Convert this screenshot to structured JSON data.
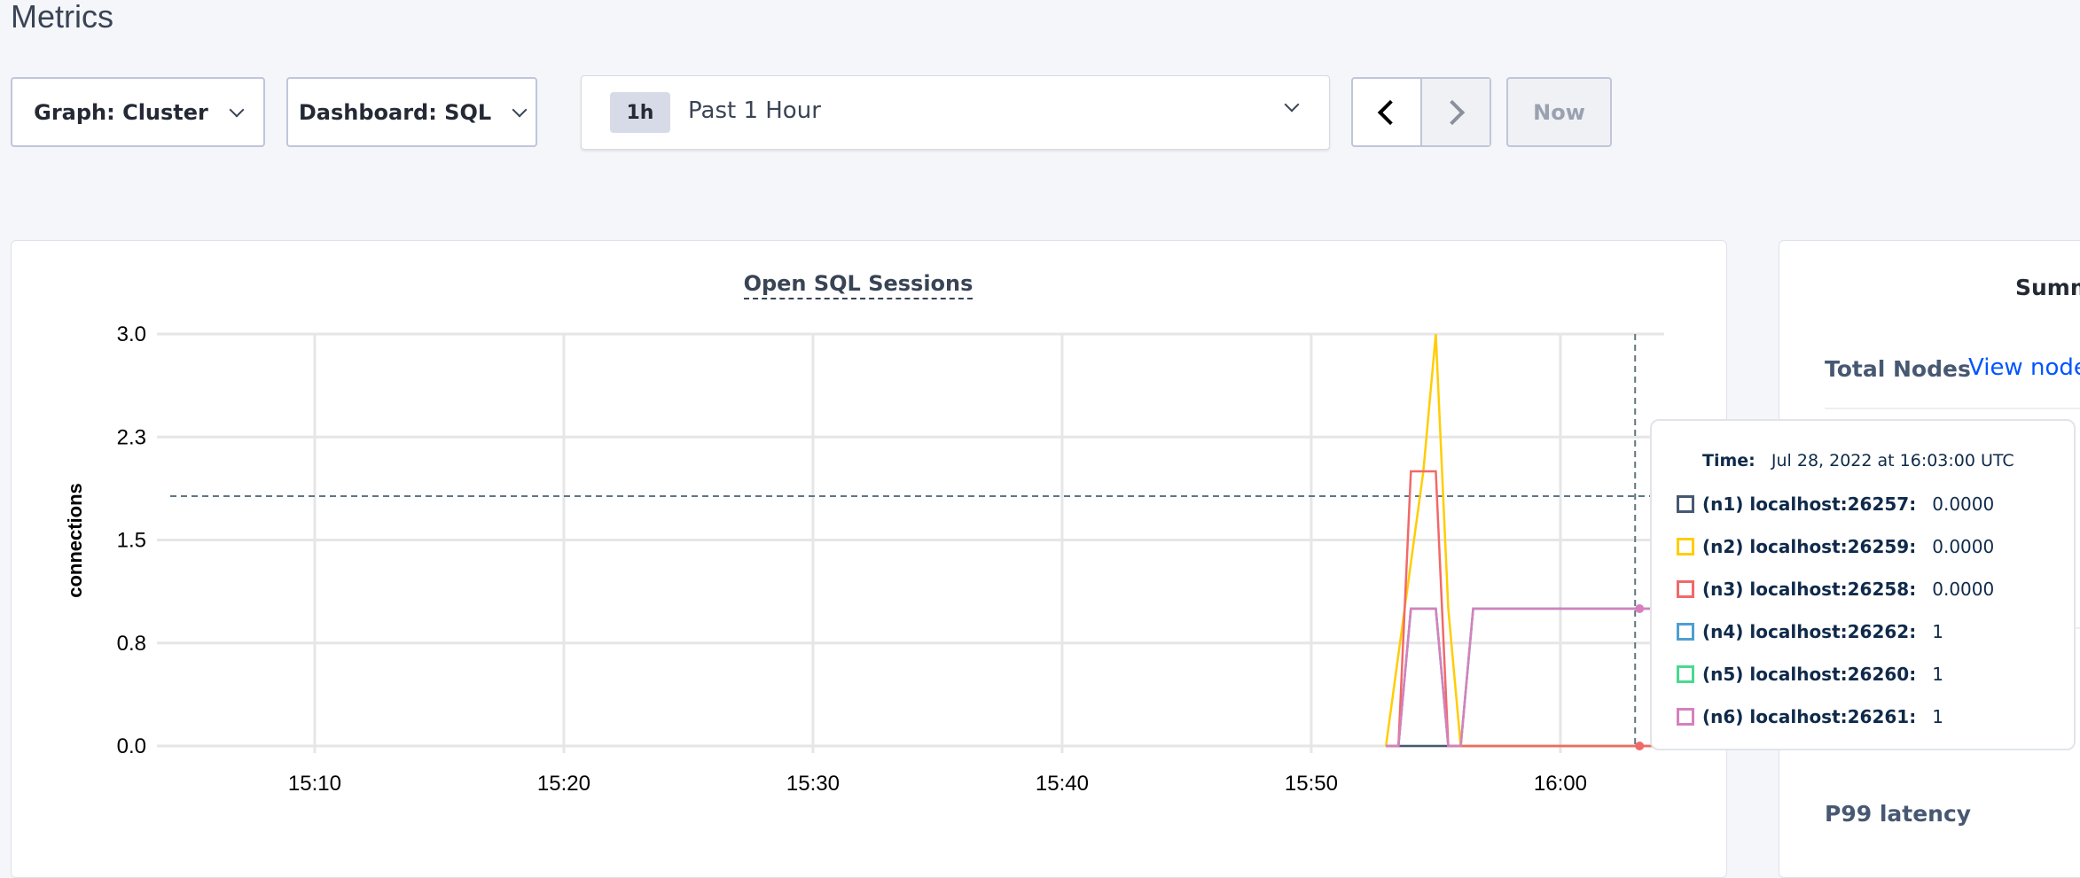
{
  "page_title": "Metrics",
  "controls": {
    "graph_label": "Graph: Cluster",
    "dashboard_label": "Dashboard: SQL",
    "time_badge": "1h",
    "time_label": "Past 1 Hour",
    "now_label": "Now"
  },
  "chart_data": {
    "type": "line",
    "title": "Open SQL Sessions",
    "ylabel": "connections",
    "xlabel": "",
    "ylim": [
      0,
      3
    ],
    "xlim": [
      "15:03:40",
      "16:04:10"
    ],
    "y_ticks": [
      {
        "value": 0,
        "label": "0.0"
      },
      {
        "value": 0.75,
        "label": "0.8"
      },
      {
        "value": 1.5,
        "label": "1.5"
      },
      {
        "value": 2.25,
        "label": "2.3"
      },
      {
        "value": 3,
        "label": "3.0"
      }
    ],
    "x_ticks": [
      "15:10",
      "15:20",
      "15:30",
      "15:40",
      "15:50",
      "16:00"
    ],
    "grid": true,
    "hover_time": "16:03:00",
    "series": [
      {
        "name": "(n1) localhost:26257",
        "color": "#475872",
        "points": [
          [
            "15:53:00",
            0
          ],
          [
            "16:04:10",
            0
          ]
        ]
      },
      {
        "name": "(n4) localhost:26262",
        "color": "#4e9fd1",
        "points": [
          [
            "15:53:00",
            0
          ],
          [
            "15:53:30",
            0
          ],
          [
            "15:54:00",
            1
          ],
          [
            "15:55:00",
            1
          ],
          [
            "15:55:30",
            0
          ],
          [
            "15:56:00",
            0
          ],
          [
            "15:56:30",
            1
          ],
          [
            "16:04:10",
            1
          ]
        ]
      },
      {
        "name": "(n5) localhost:26260",
        "color": "#49d990",
        "points": [
          [
            "15:53:00",
            0
          ],
          [
            "15:53:30",
            0
          ],
          [
            "15:54:00",
            1
          ],
          [
            "15:55:00",
            1
          ],
          [
            "15:55:30",
            0
          ],
          [
            "15:56:00",
            0
          ],
          [
            "15:56:30",
            1
          ],
          [
            "16:04:10",
            1
          ]
        ]
      },
      {
        "name": "(n2) localhost:26259",
        "color": "#ffcd02",
        "points": [
          [
            "15:53:00",
            0
          ],
          [
            "15:54:30",
            2
          ],
          [
            "15:55:00",
            3
          ],
          [
            "15:55:30",
            1
          ],
          [
            "15:56:00",
            0
          ],
          [
            "16:04:10",
            0
          ]
        ]
      },
      {
        "name": "(n3) localhost:26258",
        "color": "#f16969",
        "points": [
          [
            "15:53:00",
            0
          ],
          [
            "15:53:30",
            0
          ],
          [
            "15:54:00",
            2
          ],
          [
            "15:55:00",
            2
          ],
          [
            "15:55:30",
            0
          ],
          [
            "16:04:10",
            0
          ]
        ]
      },
      {
        "name": "(n6) localhost:26261",
        "color": "#d77fbf",
        "points": [
          [
            "15:53:00",
            0
          ],
          [
            "15:53:30",
            0
          ],
          [
            "15:54:00",
            1
          ],
          [
            "15:55:00",
            1
          ],
          [
            "15:55:30",
            0
          ],
          [
            "15:56:00",
            0
          ],
          [
            "15:56:30",
            1
          ],
          [
            "16:04:10",
            1
          ]
        ]
      }
    ]
  },
  "tooltip": {
    "time_label": "Time:",
    "time_value": "Jul 28, 2022 at 16:03:00 UTC",
    "rows": [
      {
        "label": "(n1) localhost:26257:",
        "value": "0.0000",
        "color": "#475872"
      },
      {
        "label": "(n2) localhost:26259:",
        "value": "0.0000",
        "color": "#ffcd02"
      },
      {
        "label": "(n3) localhost:26258:",
        "value": "0.0000",
        "color": "#f16969"
      },
      {
        "label": "(n4) localhost:26262:",
        "value": "1",
        "color": "#4e9fd1"
      },
      {
        "label": "(n5) localhost:26260:",
        "value": "1",
        "color": "#49d990"
      },
      {
        "label": "(n6) localhost:26261:",
        "value": "1",
        "color": "#d77fbf"
      }
    ]
  },
  "summary": {
    "title": "Summ",
    "total_nodes_label": "Total Nodes",
    "view_nodes_link": "View nodes",
    "p99_label": "P99 latency"
  }
}
